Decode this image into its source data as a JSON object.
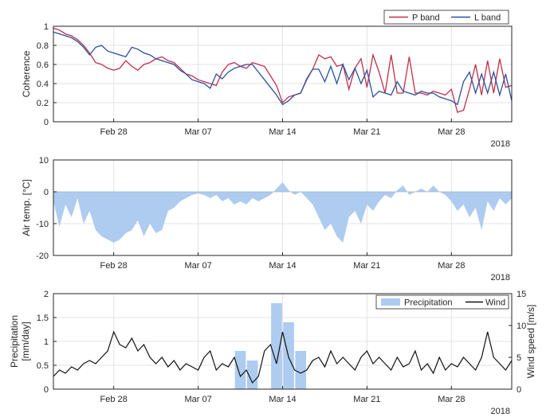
{
  "chart_data": [
    {
      "type": "line",
      "ylabel": "Coherence",
      "ylim": [
        0,
        1
      ],
      "yticks": [
        0,
        0.2,
        0.4,
        0.6,
        0.8,
        1
      ],
      "ytick_labels": [
        "0",
        "0.2",
        "0.4",
        "0.6",
        "0.8",
        "1"
      ],
      "xlim": [
        0,
        38
      ],
      "xticks": [
        5,
        12,
        19,
        26,
        33
      ],
      "xtick_labels": [
        "Feb 28",
        "Mar 07",
        "Mar 14",
        "Mar 21",
        "Mar 28"
      ],
      "year_label": "2018",
      "grid": true,
      "legend": "top-right",
      "series": [
        {
          "name": "P band",
          "color": "#c0304a",
          "x": [
            0,
            0.5,
            1,
            1.5,
            2,
            2.5,
            3,
            3.5,
            4,
            4.5,
            5,
            5.5,
            6,
            6.5,
            7,
            7.5,
            8,
            8.5,
            9,
            9.5,
            10,
            10.5,
            11,
            11.5,
            12,
            12.5,
            13,
            13.5,
            14,
            14.5,
            15,
            15.5,
            16,
            16.5,
            17,
            17.5,
            18,
            18.5,
            19,
            19.5,
            20,
            20.5,
            21,
            21.5,
            22,
            22.5,
            23,
            23.5,
            24,
            24.5,
            25,
            25.5,
            26,
            26.5,
            27,
            27.5,
            28,
            28.5,
            29,
            29.5,
            30,
            30.5,
            31,
            31.5,
            32,
            32.5,
            33,
            33.5,
            34,
            34.5,
            35,
            35.5,
            36,
            36.5,
            37,
            37.5,
            38
          ],
          "values": [
            0.98,
            0.96,
            0.92,
            0.9,
            0.86,
            0.8,
            0.72,
            0.62,
            0.6,
            0.56,
            0.54,
            0.56,
            0.64,
            0.58,
            0.54,
            0.6,
            0.62,
            0.66,
            0.68,
            0.64,
            0.62,
            0.56,
            0.5,
            0.48,
            0.44,
            0.42,
            0.4,
            0.38,
            0.52,
            0.6,
            0.62,
            0.58,
            0.56,
            0.62,
            0.6,
            0.58,
            0.48,
            0.38,
            0.2,
            0.26,
            0.28,
            0.3,
            0.44,
            0.55,
            0.7,
            0.66,
            0.68,
            0.58,
            0.6,
            0.34,
            0.56,
            0.66,
            0.36,
            0.7,
            0.52,
            0.3,
            0.7,
            0.3,
            0.3,
            0.68,
            0.3,
            0.3,
            0.28,
            0.32,
            0.3,
            0.28,
            0.34,
            0.1,
            0.12,
            0.34,
            0.6,
            0.28,
            0.64,
            0.3,
            0.66,
            0.36,
            0.38
          ]
        },
        {
          "name": "L band",
          "color": "#2a4fa0",
          "x": [
            0,
            0.5,
            1,
            1.5,
            2,
            2.5,
            3,
            3.5,
            4,
            4.5,
            5,
            5.5,
            6,
            6.5,
            7,
            7.5,
            8,
            8.5,
            9,
            9.5,
            10,
            10.5,
            11,
            11.5,
            12,
            12.5,
            13,
            13.5,
            14,
            14.5,
            15,
            15.5,
            16,
            16.5,
            17,
            17.5,
            18,
            18.5,
            19,
            19.5,
            20,
            20.5,
            21,
            21.5,
            22,
            22.5,
            23,
            23.5,
            24,
            24.5,
            25,
            25.5,
            26,
            26.5,
            27,
            27.5,
            28,
            28.5,
            29,
            29.5,
            30,
            30.5,
            31,
            31.5,
            32,
            32.5,
            33,
            33.5,
            34,
            34.5,
            35,
            35.5,
            36,
            36.5,
            37,
            37.5,
            38
          ],
          "values": [
            0.94,
            0.92,
            0.9,
            0.88,
            0.84,
            0.78,
            0.7,
            0.78,
            0.8,
            0.74,
            0.72,
            0.7,
            0.68,
            0.78,
            0.76,
            0.72,
            0.7,
            0.66,
            0.64,
            0.62,
            0.6,
            0.54,
            0.5,
            0.44,
            0.42,
            0.4,
            0.35,
            0.5,
            0.45,
            0.52,
            0.56,
            0.58,
            0.6,
            0.6,
            0.52,
            0.44,
            0.36,
            0.28,
            0.18,
            0.22,
            0.28,
            0.3,
            0.45,
            0.55,
            0.55,
            0.42,
            0.58,
            0.4,
            0.6,
            0.44,
            0.56,
            0.4,
            0.54,
            0.26,
            0.32,
            0.3,
            0.28,
            0.42,
            0.32,
            0.3,
            0.28,
            0.32,
            0.3,
            0.3,
            0.26,
            0.24,
            0.22,
            0.18,
            0.42,
            0.52,
            0.3,
            0.5,
            0.3,
            0.52,
            0.28,
            0.5,
            0.22
          ]
        }
      ]
    },
    {
      "type": "area",
      "ylabel": "Air temp. [°C]",
      "ylim": [
        -20,
        10
      ],
      "yticks": [
        -20,
        -10,
        0,
        10
      ],
      "ytick_labels": [
        "-20",
        "-10",
        "0",
        "10"
      ],
      "xlim": [
        0,
        38
      ],
      "xticks": [
        5,
        12,
        19,
        26,
        33
      ],
      "xtick_labels": [
        "Feb 28",
        "Mar 07",
        "Mar 14",
        "Mar 21",
        "Mar 28"
      ],
      "year_label": "2018",
      "grid": true,
      "color": "#aecbf0",
      "x": [
        0,
        0.5,
        1,
        1.5,
        2,
        2.5,
        3,
        3.5,
        4,
        4.5,
        5,
        5.5,
        6,
        6.5,
        7,
        7.5,
        8,
        8.5,
        9,
        9.5,
        10,
        10.5,
        11,
        11.5,
        12,
        12.5,
        13,
        13.5,
        14,
        14.5,
        15,
        15.5,
        16,
        16.5,
        17,
        17.5,
        18,
        18.5,
        19,
        19.5,
        20,
        20.5,
        21,
        21.5,
        22,
        22.5,
        23,
        23.5,
        24,
        24.5,
        25,
        25.5,
        26,
        26.5,
        27,
        27.5,
        28,
        28.5,
        29,
        29.5,
        30,
        30.5,
        31,
        31.5,
        32,
        32.5,
        33,
        33.5,
        34,
        34.5,
        35,
        35.5,
        36,
        36.5,
        37,
        37.5,
        38
      ],
      "values": [
        -3,
        -11,
        -4,
        -8,
        -2,
        -10,
        -6,
        -12,
        -14,
        -15,
        -16,
        -15,
        -13,
        -12,
        -9,
        -14,
        -10,
        -13,
        -12,
        -6,
        -5,
        -3,
        -2,
        -1,
        -0.5,
        -1,
        -2,
        -1,
        -3,
        -2,
        -4,
        -3,
        -4,
        -2,
        -3,
        -2,
        -1,
        1,
        3,
        0.5,
        -1,
        0,
        -2,
        -4,
        -8,
        -12,
        -10,
        -14,
        -16,
        -8,
        -6,
        -10,
        -4,
        -6,
        -3,
        -1,
        -2,
        0.5,
        2,
        -1,
        0,
        1,
        0,
        2,
        0,
        -1,
        -3,
        -6,
        -4,
        -8,
        -5,
        -12,
        -3,
        -6,
        -2,
        -4,
        -2
      ]
    },
    {
      "type": "bar+line",
      "ylabel": "Precipitation [mm/day]",
      "ylabel_right": "Wind speed [m/s]",
      "ylim": [
        0,
        2
      ],
      "ylim_right": [
        0,
        15
      ],
      "yticks": [
        0,
        0.5,
        1,
        1.5,
        2
      ],
      "ytick_labels": [
        "0",
        "0.5",
        "1",
        "1.5",
        "2"
      ],
      "yticks_right": [
        0,
        5,
        10,
        15
      ],
      "ytick_labels_right": [
        "0",
        "5",
        "10",
        "15"
      ],
      "xlim": [
        0,
        38
      ],
      "xticks": [
        5,
        12,
        19,
        26,
        33
      ],
      "xtick_labels": [
        "Feb 28",
        "Mar 07",
        "Mar 14",
        "Mar 21",
        "Mar 28"
      ],
      "year_label": "2018",
      "grid": true,
      "legend": "top-right",
      "series": [
        {
          "name": "Precipitation",
          "type": "bar",
          "color": "#aecbf0",
          "x": [
            15.5,
            16.5,
            18.5,
            19.5,
            20.5
          ],
          "values": [
            0.8,
            0.6,
            1.8,
            1.4,
            0.8
          ]
        },
        {
          "name": "Wind",
          "type": "line",
          "axis": "right",
          "color": "#111111",
          "x": [
            0,
            0.5,
            1,
            1.5,
            2,
            2.5,
            3,
            3.5,
            4,
            4.5,
            5,
            5.5,
            6,
            6.5,
            7,
            7.5,
            8,
            8.5,
            9,
            9.5,
            10,
            10.5,
            11,
            11.5,
            12,
            12.5,
            13,
            13.5,
            14,
            14.5,
            15,
            15.5,
            16,
            16.5,
            17,
            17.5,
            18,
            18.5,
            19,
            19.5,
            20,
            20.5,
            21,
            21.5,
            22,
            22.5,
            23,
            23.5,
            24,
            24.5,
            25,
            25.5,
            26,
            26.5,
            27,
            27.5,
            28,
            28.5,
            29,
            29.5,
            30,
            30.5,
            31,
            31.5,
            32,
            32.5,
            33,
            33.5,
            34,
            34.5,
            35,
            35.5,
            36,
            36.5,
            37,
            37.5,
            38
          ],
          "values": [
            2,
            3,
            2.5,
            3.5,
            3,
            4,
            4.5,
            4,
            5,
            6,
            9,
            7,
            6.5,
            8,
            6,
            7,
            5,
            4,
            5,
            3.5,
            4.5,
            3,
            4,
            3.5,
            3,
            5,
            6,
            3,
            4,
            3.5,
            5,
            2,
            3,
            1,
            2,
            6,
            7,
            4,
            9,
            5,
            3,
            2.5,
            3,
            4.5,
            5,
            3.5,
            6,
            4,
            5,
            4,
            3,
            5,
            6,
            4,
            5,
            4,
            3,
            5,
            3.5,
            4,
            6,
            3,
            4,
            2.5,
            5,
            3,
            4,
            3.5,
            5,
            4,
            3,
            5,
            9,
            5,
            4,
            3,
            4.5
          ]
        }
      ]
    }
  ]
}
